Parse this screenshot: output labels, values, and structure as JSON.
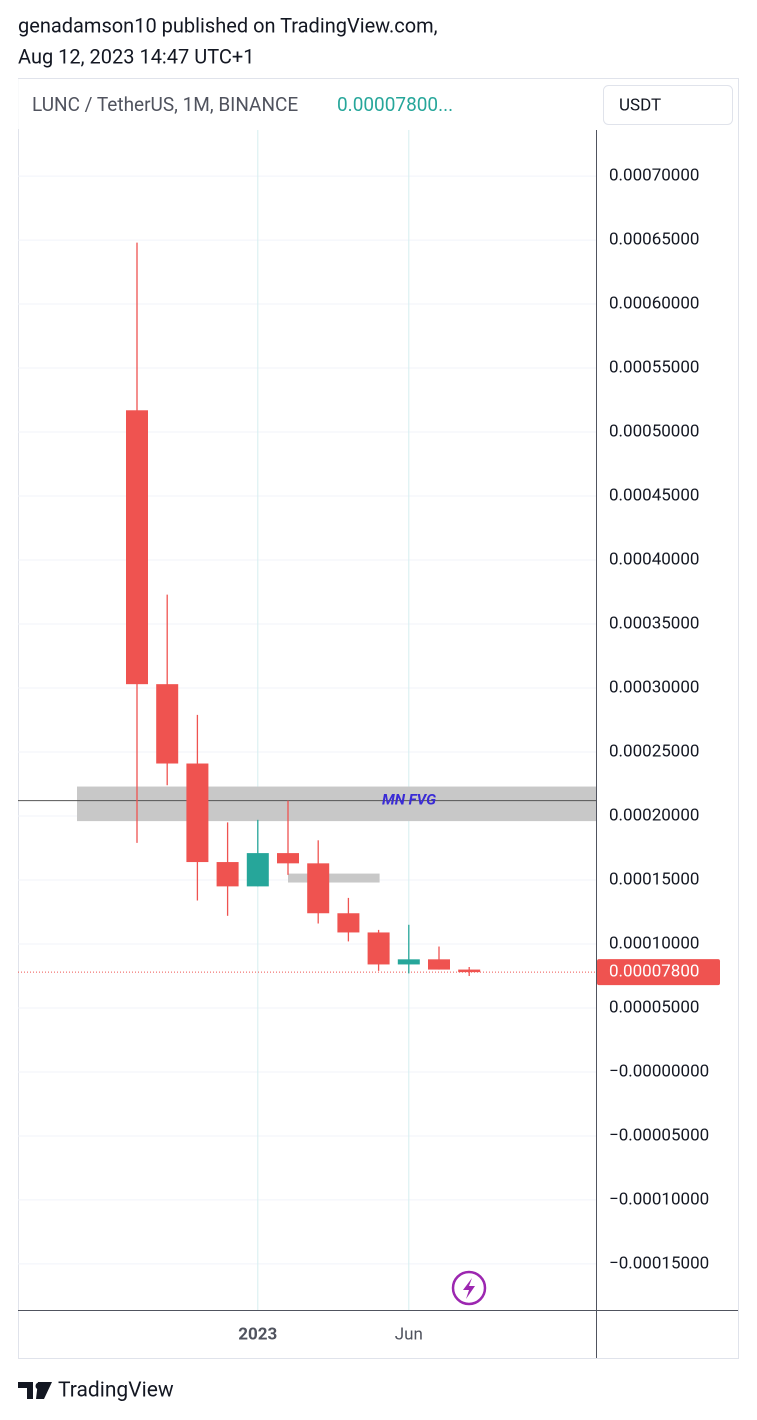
{
  "header": {
    "publisher": "genadamson10 published on TradingView.com,",
    "timestamp": "Aug 12, 2023 14:47 UTC+1"
  },
  "footer": {
    "brand": "TradingView"
  },
  "chart_data": {
    "type": "candlestick",
    "title": "LUNC / TetherUS, 1M, BINANCE",
    "title_price": "0.00007800...",
    "currency": "USDT",
    "categories": [
      null,
      null,
      null,
      null,
      "2023",
      null,
      null,
      null,
      null,
      "Jun",
      null,
      null
    ],
    "open": [
      0.000517,
      0.000303,
      0.000241,
      0.000164,
      0.000145,
      0.000171,
      0.000163,
      0.000124,
      0.000109,
      8.4e-05,
      8.8e-05,
      8e-05
    ],
    "high": [
      0.000648,
      0.000373,
      0.000279,
      0.000195,
      0.000197,
      0.000212,
      0.000181,
      0.000136,
      0.000111,
      0.000115,
      9.8e-05,
      8.2e-05
    ],
    "low": [
      0.000179,
      0.000224,
      0.000134,
      0.000122,
      0.000145,
      0.000154,
      0.000116,
      0.000102,
      7.9e-05,
      7.7e-05,
      8e-05,
      7.5e-05
    ],
    "close": [
      0.000303,
      0.000241,
      0.000164,
      0.000145,
      0.000171,
      0.000163,
      0.000124,
      0.000109,
      8.4e-05,
      8.8e-05,
      8e-05,
      7.8e-05
    ],
    "up_color": "#26a69a",
    "down_color": "#ef5350",
    "last_price": {
      "value": 7.8e-05,
      "label": "0.00007800"
    },
    "zones": [
      {
        "label": "MN FVG",
        "low": 0.000196,
        "high": 0.000223,
        "line": 0.000212
      },
      {
        "low": 0.000148,
        "high": 0.000155
      }
    ],
    "ylim": [
      -0.000186,
      0.000736
    ],
    "yticks": [
      {
        "value": 0.0007,
        "label": "0.00070000"
      },
      {
        "value": 0.00065,
        "label": "0.00065000"
      },
      {
        "value": 0.0006,
        "label": "0.00060000"
      },
      {
        "value": 0.00055,
        "label": "0.00055000"
      },
      {
        "value": 0.0005,
        "label": "0.00050000"
      },
      {
        "value": 0.00045,
        "label": "0.00045000"
      },
      {
        "value": 0.0004,
        "label": "0.00040000"
      },
      {
        "value": 0.00035,
        "label": "0.00035000"
      },
      {
        "value": 0.0003,
        "label": "0.00030000"
      },
      {
        "value": 0.00025,
        "label": "0.00025000"
      },
      {
        "value": 0.0002,
        "label": "0.00020000"
      },
      {
        "value": 0.00015,
        "label": "0.00015000"
      },
      {
        "value": 0.0001,
        "label": "0.00010000"
      },
      {
        "value": 5e-05,
        "label": "0.00005000"
      },
      {
        "value": 0,
        "label": "−0.00000000"
      },
      {
        "value": -5e-05,
        "label": "−0.00005000"
      },
      {
        "value": -0.0001,
        "label": "−0.00010000"
      },
      {
        "value": -0.00015,
        "label": "−0.00015000"
      }
    ],
    "grid": true
  }
}
